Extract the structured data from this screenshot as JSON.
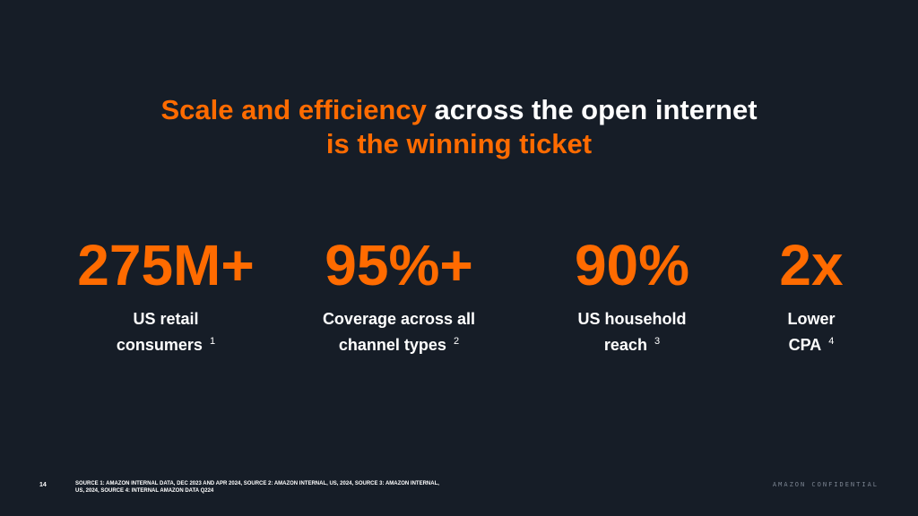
{
  "slide": {
    "title_line1_highlight": "Scale and efficiency",
    "title_line1_rest": "across the open internet",
    "title_line2": "is the winning ticket"
  },
  "stats": [
    {
      "value": "275M+",
      "label_line1": "US retail",
      "label_line2": "consumers",
      "footnote": "1"
    },
    {
      "value": "95%+",
      "label_line1": "Coverage across all",
      "label_line2": "channel types",
      "footnote": "2"
    },
    {
      "value": "90%",
      "label_line1": "US household",
      "label_line2": "reach",
      "footnote": "3"
    },
    {
      "value": "2x",
      "label_line1": "Lower",
      "label_line2": "CPA",
      "footnote": "4"
    }
  ],
  "footer": {
    "page_number": "14",
    "sources": "SOURCE 1:  AMAZON INTERNAL DATA, DEC 2023 AND APR 2024, SOURCE 2: AMAZON INTERNAL, US, 2024, SOURCE 3: AMAZON INTERNAL, US, 2024, SOURCE 4: INTERNAL AMAZON DATA Q224",
    "confidential": "AMAZON CONFIDENTIAL"
  },
  "colors": {
    "background": "#161d27",
    "accent": "#ff6b00",
    "text": "#ffffff"
  }
}
